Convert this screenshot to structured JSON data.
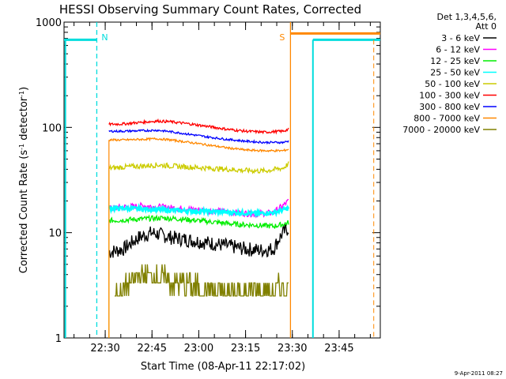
{
  "chart_data": {
    "type": "line",
    "title": "HESSI Observing Summary Count Rates, Corrected",
    "xlabel": "Start Time (08-Apr-11 22:17:02)",
    "ylabel_main": "Corrected Count Rate (s",
    "ylabel_sup1": "-1",
    "ylabel_mid": " detector",
    "ylabel_sup2": "-1",
    "ylabel_end": ")",
    "y_scale": "log",
    "ylim": [
      1,
      1000
    ],
    "xlim_minutes": [
      22.28,
      23.97
    ],
    "x_ticks": [
      {
        "label": "22:30",
        "value": 22.5
      },
      {
        "label": "22:45",
        "value": 22.75
      },
      {
        "label": "23:00",
        "value": 23.0
      },
      {
        "label": "23:15",
        "value": 23.25
      },
      {
        "label": "23:30",
        "value": 23.5
      },
      {
        "label": "23:45",
        "value": 23.75
      }
    ],
    "y_ticks": [
      {
        "label": "1",
        "value": 1
      },
      {
        "label": "10",
        "value": 10
      },
      {
        "label": "100",
        "value": 100
      },
      {
        "label": "1000",
        "value": 1000
      }
    ],
    "legend_header": [
      "Det 1,3,4,5,6,",
      "Att 0"
    ],
    "legend_position": "right",
    "series": [
      {
        "name": "3 - 6 keV",
        "color": "#000000",
        "x": [
          22.52,
          22.6,
          22.68,
          22.75,
          22.85,
          22.95,
          23.05,
          23.15,
          23.25,
          23.33,
          23.4,
          23.45,
          23.48
        ],
        "y": [
          6.5,
          7,
          9,
          10,
          9,
          8.5,
          8,
          7.5,
          7,
          6.8,
          7,
          10,
          11
        ]
      },
      {
        "name": "6 - 12 keV",
        "color": "#ff00ff",
        "x": [
          22.52,
          22.6,
          22.7,
          22.8,
          22.9,
          23.0,
          23.1,
          23.2,
          23.3,
          23.4,
          23.45,
          23.48
        ],
        "y": [
          17,
          17.5,
          18,
          17.5,
          17,
          16.5,
          16,
          15.5,
          15,
          15.5,
          18,
          20
        ]
      },
      {
        "name": "12 - 25 keV",
        "color": "#00ee00",
        "x": [
          22.52,
          22.6,
          22.7,
          22.8,
          22.9,
          23.0,
          23.1,
          23.2,
          23.3,
          23.4,
          23.45,
          23.48
        ],
        "y": [
          13,
          13.2,
          13.5,
          13.8,
          13.5,
          13,
          12.5,
          12,
          11.8,
          11.5,
          12,
          12.5
        ]
      },
      {
        "name": "25 - 50 keV",
        "color": "#00ffff",
        "x": [
          22.52,
          22.6,
          22.7,
          22.8,
          22.9,
          23.0,
          23.1,
          23.2,
          23.3,
          23.4,
          23.45,
          23.48
        ],
        "y": [
          17,
          17,
          16.8,
          16.5,
          16.2,
          16,
          15.8,
          15.5,
          15.2,
          15.5,
          16.5,
          17
        ]
      },
      {
        "name": "50 - 100 keV",
        "color": "#cccc00",
        "x": [
          22.52,
          22.6,
          22.7,
          22.78,
          22.85,
          22.95,
          23.05,
          23.15,
          23.25,
          23.35,
          23.45,
          23.48
        ],
        "y": [
          41,
          42,
          43,
          44,
          43,
          42,
          41,
          40,
          39,
          38.5,
          41,
          45
        ]
      },
      {
        "name": "100 - 300 keV",
        "color": "#ff0000",
        "x": [
          22.52,
          22.6,
          22.7,
          22.78,
          22.85,
          22.95,
          23.05,
          23.15,
          23.25,
          23.35,
          23.45,
          23.48
        ],
        "y": [
          107,
          108,
          112,
          115,
          113,
          108,
          102,
          96,
          92,
          90,
          92,
          96
        ]
      },
      {
        "name": "300 - 800 keV",
        "color": "#0000ff",
        "x": [
          22.52,
          22.6,
          22.7,
          22.78,
          22.85,
          22.95,
          23.05,
          23.15,
          23.25,
          23.35,
          23.45,
          23.48
        ],
        "y": [
          92,
          92,
          93,
          94,
          91,
          86,
          81,
          77,
          74,
          72,
          72,
          74
        ]
      },
      {
        "name": "800 - 7000 keV",
        "color": "#ff8800",
        "x": [
          22.52,
          22.6,
          22.7,
          22.78,
          22.85,
          22.95,
          23.05,
          23.15,
          23.25,
          23.35,
          23.45,
          23.48
        ],
        "y": [
          76,
          76,
          77,
          78,
          76,
          72,
          68,
          64,
          61,
          60,
          60,
          62
        ]
      },
      {
        "name": "7000 - 20000 keV",
        "color": "#808000",
        "x": [
          22.55,
          22.6,
          22.65,
          22.72,
          22.8,
          22.9,
          23.0,
          23.1,
          23.2,
          23.3,
          23.4,
          23.48
        ],
        "y": [
          2.4,
          2.9,
          3.6,
          4.0,
          3.7,
          3.3,
          3.0,
          2.8,
          2.7,
          2.7,
          2.8,
          3.2
        ]
      }
    ],
    "overlays": [
      {
        "name": "night-low",
        "color": "#00dddd",
        "x": [
          22.28,
          22.455
        ],
        "y": [
          680,
          680
        ]
      },
      {
        "name": "night-high",
        "color": "#00dddd",
        "x": [
          23.61,
          23.97
        ],
        "y": [
          680,
          680
        ]
      },
      {
        "name": "saa",
        "color": "#ff8800",
        "x": [
          23.49,
          23.97
        ],
        "y": [
          780,
          780
        ]
      }
    ],
    "markers": [
      {
        "label": "N",
        "color": "#00dddd",
        "x": 22.455,
        "style": "dashed"
      },
      {
        "label": "S",
        "color": "#ff8800",
        "x": 23.49,
        "style": "solid"
      }
    ],
    "timestamp": "9-Apr-2011 08:27"
  }
}
